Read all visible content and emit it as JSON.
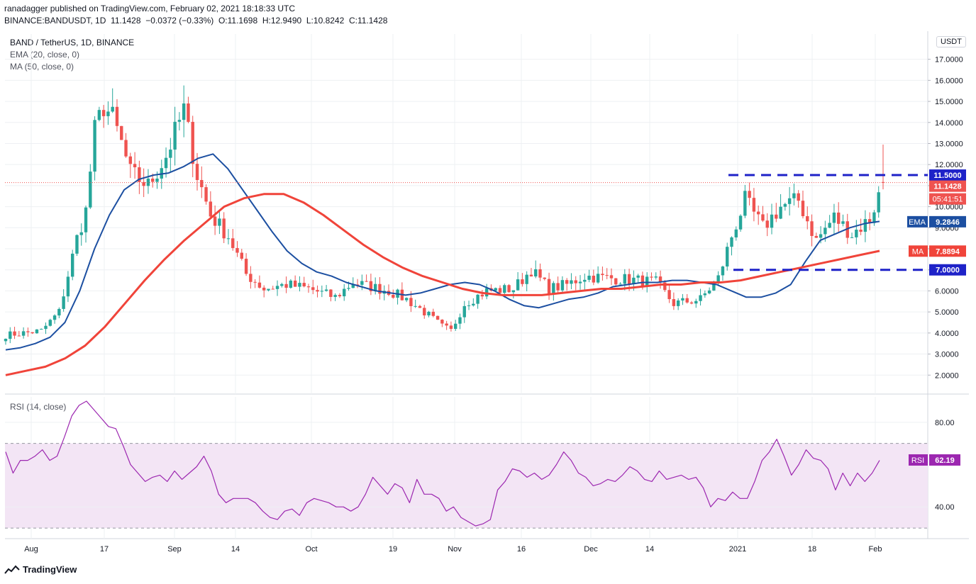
{
  "header": {
    "published_line": "ranadagger published on TradingView.com, February 02, 2021 18:18:33 UTC",
    "symbol": "BINANCE:BANDUSDT, 1D",
    "last": "11.1428",
    "change": "−0.0372 (−0.33%)",
    "o_label": "O:",
    "o": "11.1698",
    "h_label": "H:",
    "h": "12.9490",
    "l_label": "L:",
    "l": "10.8242",
    "c_label": "C:",
    "c": "11.1428"
  },
  "legend": {
    "main": "BAND / TetherUS, 1D, BINANCE",
    "ema": "EMA (20, close, 0)",
    "ma": "MA (50, close, 0)",
    "rsi": "RSI (14, close)"
  },
  "currency_badge": "USDT",
  "footer": {
    "brand": "TradingView"
  },
  "colors": {
    "up": "#26a69a",
    "down": "#ef5350",
    "ema": "#1c4fa1",
    "ma": "#f0443a",
    "rsi_line": "#9c27b0",
    "rsi_band": "#f3e5f5",
    "level": "#1e22c8",
    "grid": "#eef0f3"
  },
  "chart_data": [
    {
      "type": "candlestick",
      "title": "BAND / TetherUS, 1D, BINANCE",
      "y_axis_ticks": [
        "2.0000",
        "3.0000",
        "4.0000",
        "5.0000",
        "6.0000",
        "7.0000",
        "8.0000",
        "9.0000",
        "10.0000",
        "11.0000",
        "12.0000",
        "13.0000",
        "14.0000",
        "15.0000",
        "16.0000",
        "17.0000"
      ],
      "ylim": [
        1.1,
        18.2
      ],
      "x_axis_ticks": [
        "Aug",
        "17",
        "Sep",
        "14",
        "Oct",
        "19",
        "Nov",
        "16",
        "Dec",
        "14",
        "2021",
        "18",
        "Feb"
      ],
      "levels": [
        {
          "label": "11.5000",
          "value": 11.5
        },
        {
          "label": "7.0000",
          "value": 7.0
        }
      ],
      "last_price_label": "11.1428",
      "countdown_label": "05:41:51",
      "ema_label": "EMA",
      "ema_value": "9.2846",
      "ma_label": "MA",
      "ma_value": "7.8894",
      "series": [
        {
          "name": "EMA (20, close, 0)",
          "values": [
            3.2,
            3.3,
            3.5,
            3.8,
            4.5,
            6.0,
            8.0,
            9.6,
            10.8,
            11.3,
            11.5,
            11.6,
            11.9,
            12.3,
            12.5,
            11.8,
            10.8,
            9.8,
            8.8,
            7.9,
            7.3,
            6.9,
            6.7,
            6.4,
            6.2,
            6.0,
            5.9,
            5.8,
            5.9,
            6.1,
            6.3,
            6.4,
            6.3,
            6.0,
            5.6,
            5.3,
            5.2,
            5.4,
            5.6,
            5.7,
            5.9,
            6.2,
            6.3,
            6.4,
            6.4,
            6.5,
            6.5,
            6.4,
            6.3,
            6.0,
            5.7,
            5.7,
            5.9,
            6.3,
            7.4,
            8.4,
            8.7,
            9.0,
            9.2,
            9.3
          ]
        },
        {
          "name": "MA (50, close, 0)",
          "values": [
            2.0,
            2.2,
            2.4,
            2.8,
            3.4,
            4.3,
            5.4,
            6.5,
            7.5,
            8.4,
            9.2,
            10.0,
            10.4,
            10.6,
            10.6,
            10.2,
            9.6,
            8.9,
            8.2,
            7.6,
            7.1,
            6.7,
            6.4,
            6.1,
            5.9,
            5.8,
            5.8,
            5.8,
            5.9,
            6.0,
            6.1,
            6.1,
            6.2,
            6.3,
            6.3,
            6.4,
            6.4,
            6.5,
            6.7,
            6.9,
            7.1,
            7.3,
            7.5,
            7.7,
            7.9
          ]
        }
      ]
    },
    {
      "type": "line",
      "title": "RSI (14, close)",
      "y_axis_ticks": [
        "40.00",
        "80.00"
      ],
      "band": [
        30,
        70
      ],
      "ylim": [
        25,
        92
      ],
      "rsi_label": "RSI",
      "rsi_value": "62.19",
      "series": [
        {
          "name": "RSI (14, close)",
          "values": [
            66,
            56,
            62,
            62,
            64,
            67,
            62,
            64,
            73,
            83,
            88,
            90,
            86,
            82,
            78,
            77,
            69,
            60,
            56,
            52,
            54,
            55,
            52,
            57,
            53,
            56,
            59,
            64,
            57,
            46,
            42,
            44,
            44,
            44,
            42,
            38,
            35,
            34,
            38,
            39,
            36,
            42,
            44,
            43,
            42,
            40,
            40,
            38,
            40,
            46,
            54,
            50,
            46,
            51,
            49,
            42,
            53,
            46,
            46,
            44,
            38,
            40,
            35,
            33,
            31,
            32,
            34,
            48,
            52,
            58,
            57,
            54,
            56,
            53,
            55,
            60,
            66,
            62,
            56,
            54,
            50,
            51,
            53,
            52,
            55,
            59,
            57,
            53,
            52,
            57,
            53,
            54,
            55,
            53,
            54,
            49,
            40,
            44,
            43,
            47,
            44,
            44,
            52,
            62,
            66,
            72,
            64,
            55,
            60,
            67,
            63,
            62,
            58,
            48,
            56,
            50,
            56,
            52,
            56,
            62
          ]
        }
      ]
    }
  ]
}
